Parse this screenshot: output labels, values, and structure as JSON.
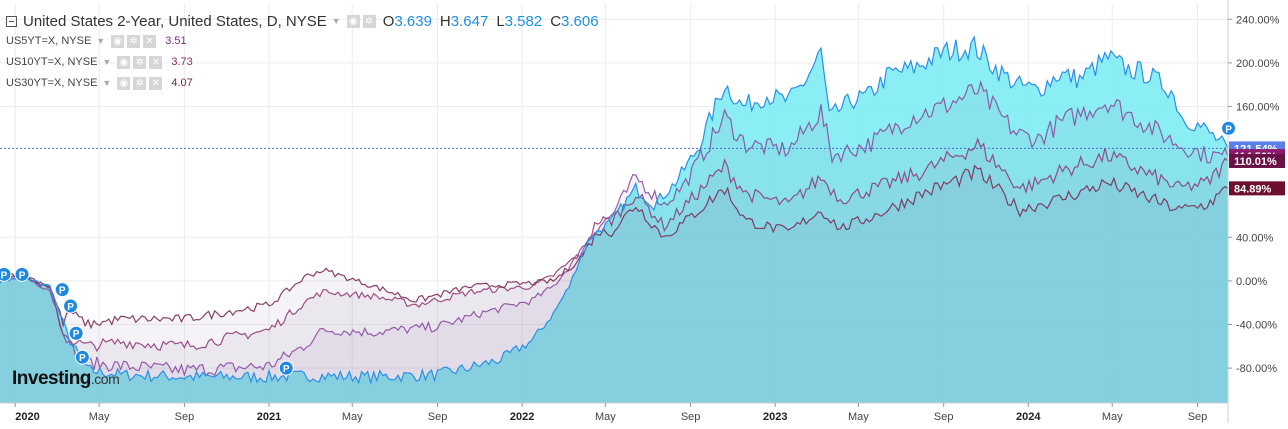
{
  "header": {
    "title": "United States 2-Year, United States, D, NYSE",
    "open_label": "O",
    "open": "3.639",
    "high_label": "H",
    "high": "3.647",
    "low_label": "L",
    "low": "3.582",
    "close_label": "C",
    "close": "3.606"
  },
  "overlays": [
    {
      "label": "US5YT=X, NYSE",
      "last": "3.51",
      "color": "#7a2c8c"
    },
    {
      "label": "US10YT=X, NYSE",
      "last": "3.73",
      "color": "#8c2c6e"
    },
    {
      "label": "US30YT=X, NYSE",
      "last": "4.07",
      "color": "#7a1f4d"
    }
  ],
  "logo": {
    "brand": "Investing",
    "suffix": ".com"
  },
  "chart_data": {
    "type": "area",
    "x_axis": {
      "tick_labels": [
        "2020",
        "May",
        "Sep",
        "2021",
        "May",
        "Sep",
        "2022",
        "May",
        "Sep",
        "2023",
        "May",
        "Sep",
        "2024",
        "May",
        "Sep"
      ],
      "tick_dates": [
        "2020-01-01",
        "2020-05-01",
        "2020-09-01",
        "2021-01-01",
        "2021-05-01",
        "2021-09-01",
        "2022-01-01",
        "2022-05-01",
        "2022-09-01",
        "2023-01-01",
        "2023-05-01",
        "2023-09-01",
        "2024-01-01",
        "2024-05-01",
        "2024-09-01"
      ],
      "range": [
        "2019-12-10",
        "2024-10-15"
      ]
    },
    "y_axis": {
      "tick_labels": [
        "240.00%",
        "200.00%",
        "160.00%",
        "40.00%",
        "0.00%",
        "-40.00%",
        "-80.00%"
      ],
      "tick_values": [
        240,
        200,
        160,
        40,
        0,
        -40,
        -80
      ],
      "range": [
        -112,
        254
      ],
      "unit": "%"
    },
    "current_line": 121.54,
    "current_labels": [
      {
        "text": "121.54%",
        "value": 121.54,
        "color": "#5b7fe6"
      },
      {
        "text": "114.50%",
        "value": 114.5,
        "color": "#8b1a6e"
      },
      {
        "text": "110.01%",
        "value": 110.01,
        "color": "#6a1248"
      },
      {
        "text": "84.89%",
        "value": 84.89,
        "color": "#6e0f2e"
      }
    ],
    "series": [
      {
        "name": "United States 2-Year",
        "color": "#2b8fe8",
        "fill": "#7eecf3",
        "points": [
          [
            "2019-12-10",
            0
          ],
          [
            "2020-01-10",
            3
          ],
          [
            "2020-02-20",
            -5
          ],
          [
            "2020-03-05",
            -30
          ],
          [
            "2020-03-20",
            -55
          ],
          [
            "2020-04-15",
            -82
          ],
          [
            "2020-06-01",
            -86
          ],
          [
            "2020-09-01",
            -88
          ],
          [
            "2021-01-01",
            -88
          ],
          [
            "2021-03-01",
            -87
          ],
          [
            "2021-06-01",
            -88
          ],
          [
            "2021-09-01",
            -86
          ],
          [
            "2021-10-15",
            -80
          ],
          [
            "2021-12-01",
            -72
          ],
          [
            "2022-01-15",
            -55
          ],
          [
            "2022-02-15",
            -30
          ],
          [
            "2022-03-10",
            -5
          ],
          [
            "2022-03-25",
            20
          ],
          [
            "2022-04-10",
            40
          ],
          [
            "2022-05-10",
            55
          ],
          [
            "2022-06-14",
            85
          ],
          [
            "2022-07-10",
            70
          ],
          [
            "2022-08-10",
            90
          ],
          [
            "2022-09-10",
            120
          ],
          [
            "2022-10-20",
            180
          ],
          [
            "2022-11-15",
            160
          ],
          [
            "2022-12-20",
            170
          ],
          [
            "2023-01-20",
            165
          ],
          [
            "2023-02-15",
            185
          ],
          [
            "2023-03-08",
            210
          ],
          [
            "2023-03-20",
            150
          ],
          [
            "2023-04-20",
            165
          ],
          [
            "2023-05-15",
            170
          ],
          [
            "2023-06-15",
            190
          ],
          [
            "2023-07-20",
            195
          ],
          [
            "2023-09-01",
            210
          ],
          [
            "2023-10-15",
            215
          ],
          [
            "2023-11-15",
            195
          ],
          [
            "2023-12-15",
            180
          ],
          [
            "2024-01-15",
            175
          ],
          [
            "2024-02-15",
            190
          ],
          [
            "2024-03-15",
            185
          ],
          [
            "2024-04-25",
            205
          ],
          [
            "2024-05-20",
            195
          ],
          [
            "2024-06-20",
            190
          ],
          [
            "2024-07-25",
            175
          ],
          [
            "2024-08-10",
            150
          ],
          [
            "2024-09-10",
            140
          ],
          [
            "2024-10-15",
            121.5
          ]
        ]
      },
      {
        "name": "US5YT=X, NYSE",
        "color": "#8a4c9e",
        "points": [
          [
            "2019-12-10",
            2
          ],
          [
            "2020-01-10",
            5
          ],
          [
            "2020-02-20",
            -8
          ],
          [
            "2020-03-10",
            -45
          ],
          [
            "2020-03-25",
            -65
          ],
          [
            "2020-04-15",
            -75
          ],
          [
            "2020-06-01",
            -78
          ],
          [
            "2020-09-01",
            -82
          ],
          [
            "2021-01-01",
            -78
          ],
          [
            "2021-02-20",
            -60
          ],
          [
            "2021-03-20",
            -45
          ],
          [
            "2021-06-01",
            -47
          ],
          [
            "2021-09-01",
            -42
          ],
          [
            "2021-11-01",
            -30
          ],
          [
            "2022-01-15",
            -18
          ],
          [
            "2022-02-15",
            -5
          ],
          [
            "2022-03-25",
            25
          ],
          [
            "2022-04-20",
            50
          ],
          [
            "2022-05-10",
            60
          ],
          [
            "2022-06-14",
            95
          ],
          [
            "2022-07-25",
            70
          ],
          [
            "2022-08-25",
            90
          ],
          [
            "2022-10-20",
            150
          ],
          [
            "2022-11-20",
            125
          ],
          [
            "2023-01-20",
            120
          ],
          [
            "2023-03-08",
            155
          ],
          [
            "2023-03-24",
            115
          ],
          [
            "2023-05-15",
            125
          ],
          [
            "2023-07-15",
            150
          ],
          [
            "2023-09-01",
            160
          ],
          [
            "2023-10-20",
            175
          ],
          [
            "2023-12-15",
            135
          ],
          [
            "2024-01-15",
            130
          ],
          [
            "2024-02-15",
            145
          ],
          [
            "2024-04-25",
            165
          ],
          [
            "2024-06-15",
            145
          ],
          [
            "2024-08-05",
            125
          ],
          [
            "2024-09-15",
            115
          ],
          [
            "2024-10-15",
            114.5
          ]
        ]
      },
      {
        "name": "US10YT=X, NYSE",
        "color": "#8e3e78",
        "points": [
          [
            "2019-12-10",
            4
          ],
          [
            "2020-01-10",
            6
          ],
          [
            "2020-02-20",
            -8
          ],
          [
            "2020-03-10",
            -48
          ],
          [
            "2020-03-25",
            -55
          ],
          [
            "2020-04-15",
            -60
          ],
          [
            "2020-06-01",
            -56
          ],
          [
            "2020-09-01",
            -60
          ],
          [
            "2021-01-01",
            -45
          ],
          [
            "2021-02-25",
            -18
          ],
          [
            "2021-03-20",
            -10
          ],
          [
            "2021-06-01",
            -14
          ],
          [
            "2021-08-01",
            -22
          ],
          [
            "2021-10-20",
            -10
          ],
          [
            "2022-01-15",
            -5
          ],
          [
            "2022-02-15",
            5
          ],
          [
            "2022-03-25",
            25
          ],
          [
            "2022-04-20",
            55
          ],
          [
            "2022-05-10",
            55
          ],
          [
            "2022-06-14",
            80
          ],
          [
            "2022-07-25",
            50
          ],
          [
            "2022-08-25",
            70
          ],
          [
            "2022-10-20",
            105
          ],
          [
            "2022-11-20",
            80
          ],
          [
            "2023-01-20",
            70
          ],
          [
            "2023-03-08",
            95
          ],
          [
            "2023-04-05",
            75
          ],
          [
            "2023-05-25",
            85
          ],
          [
            "2023-08-01",
            100
          ],
          [
            "2023-10-20",
            125
          ],
          [
            "2023-12-20",
            85
          ],
          [
            "2024-01-15",
            90
          ],
          [
            "2024-02-15",
            100
          ],
          [
            "2024-04-25",
            115
          ],
          [
            "2024-06-15",
            100
          ],
          [
            "2024-08-05",
            85
          ],
          [
            "2024-09-15",
            90
          ],
          [
            "2024-10-15",
            110.0
          ]
        ]
      },
      {
        "name": "US30YT=X, NYSE",
        "color": "#7a2d52",
        "points": [
          [
            "2019-12-10",
            6
          ],
          [
            "2020-01-10",
            6
          ],
          [
            "2020-02-20",
            -5
          ],
          [
            "2020-03-10",
            -38
          ],
          [
            "2020-03-20",
            -28
          ],
          [
            "2020-04-15",
            -40
          ],
          [
            "2020-06-01",
            -35
          ],
          [
            "2020-09-01",
            -35
          ],
          [
            "2021-01-01",
            -22
          ],
          [
            "2021-02-25",
            5
          ],
          [
            "2021-03-20",
            10
          ],
          [
            "2021-06-01",
            -5
          ],
          [
            "2021-08-01",
            -18
          ],
          [
            "2021-10-20",
            -5
          ],
          [
            "2022-01-15",
            -2
          ],
          [
            "2022-02-15",
            0
          ],
          [
            "2022-03-25",
            20
          ],
          [
            "2022-04-20",
            45
          ],
          [
            "2022-05-10",
            45
          ],
          [
            "2022-06-14",
            70
          ],
          [
            "2022-07-25",
            40
          ],
          [
            "2022-08-25",
            55
          ],
          [
            "2022-10-20",
            85
          ],
          [
            "2022-11-20",
            55
          ],
          [
            "2023-01-20",
            45
          ],
          [
            "2023-03-08",
            65
          ],
          [
            "2023-04-05",
            48
          ],
          [
            "2023-05-25",
            60
          ],
          [
            "2023-08-01",
            80
          ],
          [
            "2023-10-20",
            100
          ],
          [
            "2023-12-20",
            65
          ],
          [
            "2024-01-15",
            70
          ],
          [
            "2024-02-15",
            75
          ],
          [
            "2024-04-25",
            90
          ],
          [
            "2024-06-15",
            78
          ],
          [
            "2024-08-05",
            65
          ],
          [
            "2024-09-15",
            70
          ],
          [
            "2024-10-15",
            84.9
          ]
        ]
      }
    ],
    "event_markers": {
      "label": "P",
      "dates": [
        "2019-12-10",
        "2020-01-05",
        "2020-03-03",
        "2020-03-15",
        "2020-03-23",
        "2020-04-01",
        "2021-01-20",
        "2024-10-10"
      ],
      "values": [
        6,
        6,
        -8,
        -23,
        -48,
        -70,
        -80,
        140
      ]
    },
    "grid": true,
    "legend": "top-left"
  }
}
